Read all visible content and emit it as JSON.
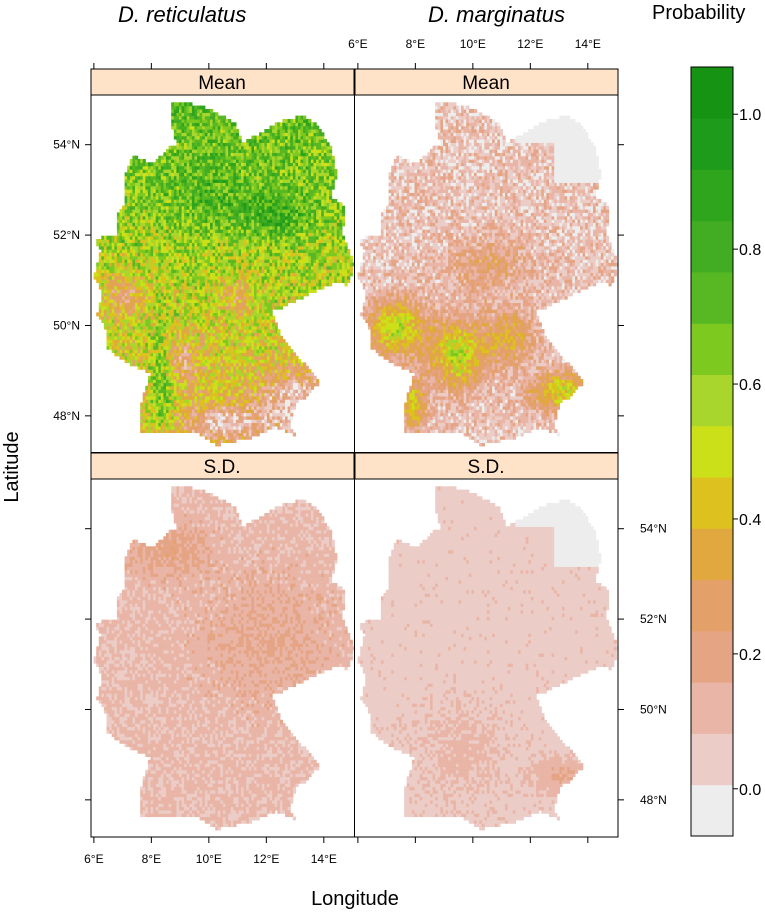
{
  "columns": [
    {
      "title": "D. reticulatus"
    },
    {
      "title": "D. marginatus"
    }
  ],
  "panels": {
    "mean_label": "Mean",
    "sd_label": "S.D."
  },
  "axes": {
    "xlabel": "Longitude",
    "ylabel": "Latitude",
    "x_ticks": [
      "6°E",
      "8°E",
      "10°E",
      "12°E",
      "14°E"
    ],
    "y_ticks": [
      "48°N",
      "50°N",
      "52°N",
      "54°N"
    ]
  },
  "legend": {
    "title": "Probability",
    "tick_labels": [
      "0.0",
      "0.2",
      "0.4",
      "0.6",
      "0.8",
      "1.0"
    ],
    "colors": [
      "#ededed",
      "#ecccc6",
      "#e9b5a6",
      "#e5a585",
      "#e3a068",
      "#e0a83e",
      "#dcc11f",
      "#cce01a",
      "#a9d62c",
      "#7dc91f",
      "#57b823",
      "#42ad22",
      "#2ea51c",
      "#1f9b1b",
      "#169312"
    ]
  },
  "colors": {
    "strip_bg": "#ffe3c9",
    "no_data": "#ffffff"
  },
  "chart_data": {
    "type": "heatmap",
    "value_range": [
      0.0,
      1.0
    ],
    "panels": [
      {
        "column": "D. reticulatus",
        "row": "Mean"
      },
      {
        "column": "D. marginatus",
        "row": "Mean"
      },
      {
        "column": "D. reticulatus",
        "row": "S.D."
      },
      {
        "column": "D. marginatus",
        "row": "S.D."
      }
    ]
  }
}
